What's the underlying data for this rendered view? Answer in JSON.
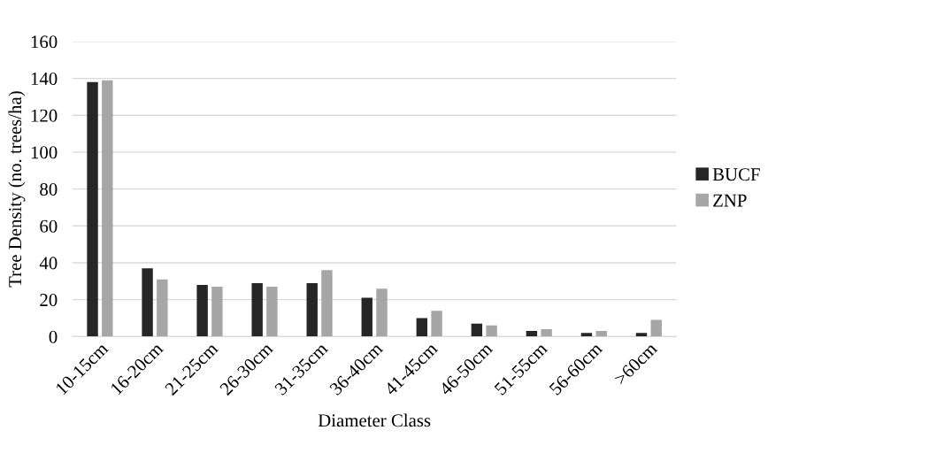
{
  "chart_data": {
    "type": "bar",
    "xlabel": "Diameter Class",
    "ylabel": "Tree Density (no. trees/ha)",
    "categories": [
      "10-15cm",
      "16-20cm",
      "21-25cm",
      "26-30cm",
      "31-35cm",
      "36-40cm",
      "41-45cm",
      "46-50cm",
      "51-55cm",
      "56-60cm",
      ">60cm"
    ],
    "series": [
      {
        "name": "BUCF",
        "color": "#262626",
        "values": [
          138,
          37,
          28,
          29,
          29,
          21,
          10,
          7,
          3,
          2,
          2
        ]
      },
      {
        "name": "ZNP",
        "color": "#a6a6a6",
        "values": [
          139,
          31,
          27,
          27,
          36,
          26,
          14,
          6,
          4,
          3,
          9
        ]
      }
    ],
    "ylim": [
      0,
      160
    ],
    "yticks": [
      0,
      20,
      40,
      60,
      80,
      100,
      120,
      140,
      160
    ],
    "grid": "y",
    "legend": "right"
  }
}
